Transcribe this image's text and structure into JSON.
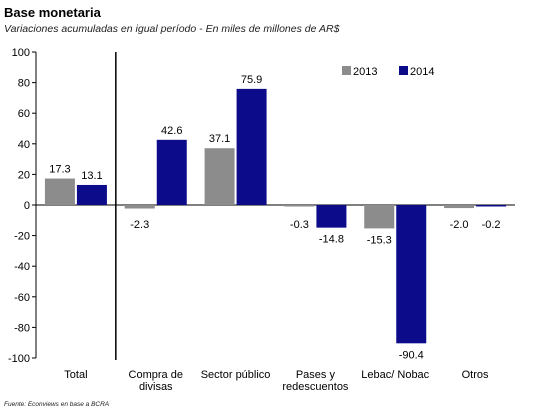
{
  "chart_data": {
    "type": "bar",
    "title": "Base monetaria",
    "subtitle": "Variaciones acumuladas en igual período - En miles de millones de AR$",
    "source": "Fuente: Econviews en base a BCRA",
    "categories": [
      [
        "Total"
      ],
      [
        "Compra de",
        "divisas"
      ],
      [
        "Sector público"
      ],
      [
        "Pases y",
        "redescuentos"
      ],
      [
        "Lebac/ Nobac"
      ],
      [
        "Otros"
      ]
    ],
    "series": [
      {
        "name": "2013",
        "color": "#8c8c8c",
        "values": [
          17.3,
          -2.3,
          37.1,
          -0.3,
          -15.3,
          -2.0
        ]
      },
      {
        "name": "2014",
        "color": "#0c0c8a",
        "values": [
          13.1,
          42.6,
          75.9,
          -14.8,
          -90.4,
          -0.2
        ]
      }
    ],
    "data_labels": [
      [
        "17.3",
        "-2.3",
        "37.1",
        "-0.3",
        "-15.3",
        "-2.0"
      ],
      [
        "13.1",
        "42.6",
        "75.9",
        "-14.8",
        "-90.4",
        "-0.2"
      ]
    ],
    "ylim": [
      -100,
      100
    ],
    "yticks": [
      -100,
      -80,
      -60,
      -40,
      -20,
      0,
      20,
      40,
      60,
      80,
      100
    ],
    "grid": false,
    "legend": "top-right",
    "separator_after_category": 0
  }
}
